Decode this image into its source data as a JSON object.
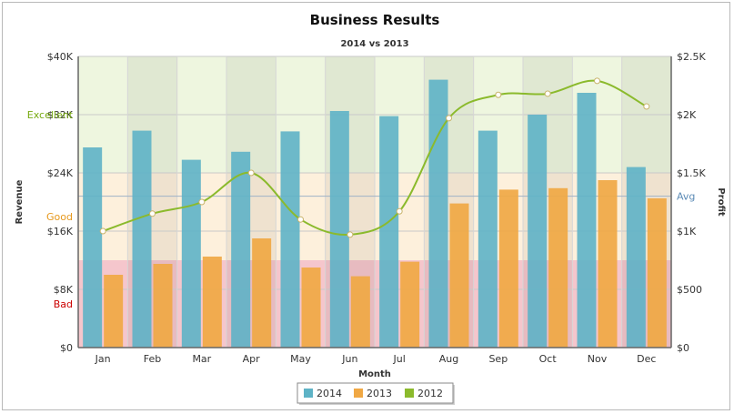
{
  "chart_data": {
    "type": "bar",
    "title": "Business Results",
    "subtitle": "2014 vs 2013",
    "xlabel": "Month",
    "ylabel": "Revenue",
    "y2label": "Profit",
    "categories": [
      "Jan",
      "Feb",
      "Mar",
      "Apr",
      "May",
      "Jun",
      "Jul",
      "Aug",
      "Sep",
      "Oct",
      "Nov",
      "Dec"
    ],
    "series": [
      {
        "name": "2014",
        "type": "bar",
        "axis": "left",
        "color": "#5eb3c6",
        "values": [
          27500,
          29800,
          25800,
          26900,
          29700,
          32500,
          31800,
          36800,
          29800,
          32000,
          35000,
          24800
        ]
      },
      {
        "name": "2013",
        "type": "bar",
        "axis": "left",
        "color": "#f0a844",
        "values": [
          10000,
          11500,
          12500,
          15000,
          11000,
          9800,
          11800,
          19800,
          21700,
          21900,
          23000,
          20500
        ]
      },
      {
        "name": "2012",
        "type": "line",
        "axis": "right",
        "color": "#8bba2c",
        "values": [
          1000,
          1150,
          1250,
          1500,
          1100,
          970,
          1170,
          1970,
          2170,
          2180,
          2290,
          2070
        ]
      }
    ],
    "ylim": [
      0,
      40000
    ],
    "y2lim": [
      0,
      2500
    ],
    "y_ticks": [
      "$0",
      "$8K",
      "$16K",
      "$24K",
      "$32K",
      "$40K"
    ],
    "y_tick_values": [
      0,
      8000,
      16000,
      24000,
      32000,
      40000
    ],
    "y2_ticks": [
      "$0",
      "$500",
      "$1K",
      "$1.5K",
      "$2K",
      "$2.5K"
    ],
    "y2_tick_values": [
      0,
      500,
      1000,
      1500,
      2000,
      2500
    ],
    "bands": [
      {
        "label": "Bad",
        "from": 0,
        "to": 12000,
        "color": "#f5c6cc",
        "label_color": "#cc0000",
        "label_value": 6000
      },
      {
        "label": "Good",
        "from": 12000,
        "to": 24000,
        "color": "#fdf0dc",
        "label_color": "#e6981c",
        "label_value": 18000
      },
      {
        "label": "Excellent",
        "from": 24000,
        "to": 40000,
        "color": "#eef6df",
        "label_color": "#77aa11",
        "label_value": 32000
      }
    ],
    "trendline": {
      "label": "Avg",
      "value": 1300,
      "axis": "right",
      "color": "#5a8ab5"
    },
    "legend_position": "bottom",
    "grid": true
  }
}
